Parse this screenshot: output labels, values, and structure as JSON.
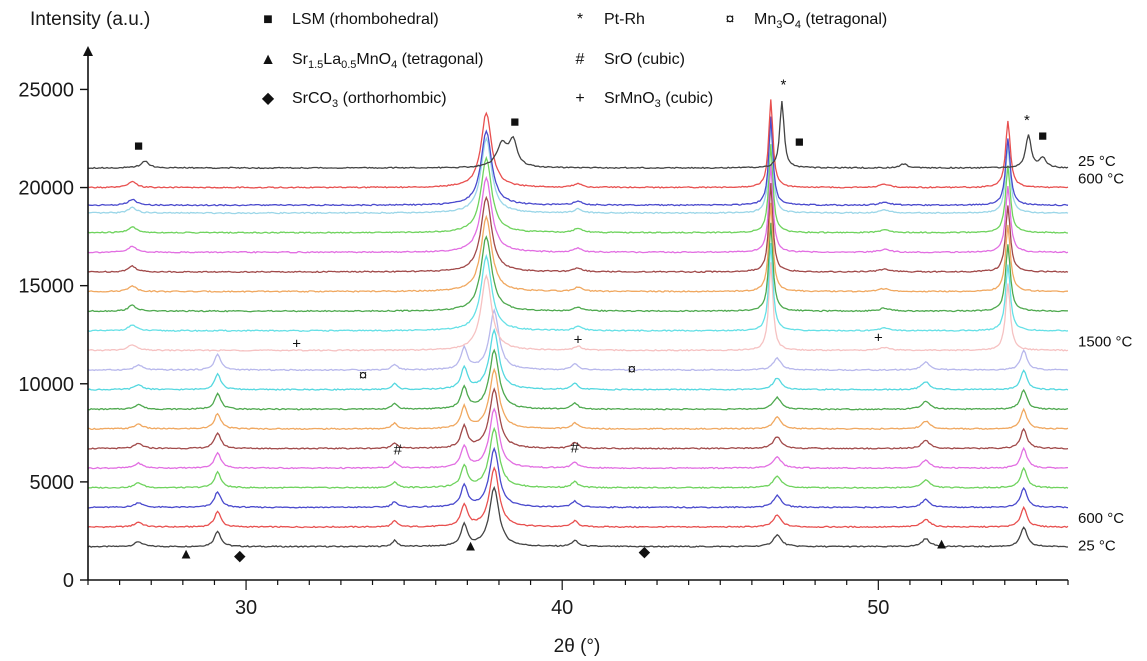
{
  "chart_data": {
    "type": "line",
    "title": "",
    "xlabel": "2θ (°)",
    "ylabel": "Intensity (a.u.)",
    "xlim": [
      25,
      56
    ],
    "ylim": [
      0,
      25000
    ],
    "xticks": [
      30,
      40,
      50
    ],
    "yticks": [
      0,
      5000,
      10000,
      15000,
      20000,
      25000
    ],
    "grid": false,
    "series_note": "waterfall of XRD patterns, heating 25→1500 °C then cooling to 25 °C",
    "series": [
      {
        "temp_label": "25 °C",
        "color": "#444444",
        "baseline": 1700,
        "phase": "low"
      },
      {
        "temp_label": "600 °C",
        "color": "#e8504f",
        "baseline": 2700,
        "phase": "low"
      },
      {
        "temp_label": "",
        "color": "#4a4acd",
        "baseline": 3700,
        "phase": "low"
      },
      {
        "temp_label": "",
        "color": "#6fd35e",
        "baseline": 4700,
        "phase": "low"
      },
      {
        "temp_label": "",
        "color": "#e26fe2",
        "baseline": 5700,
        "phase": "low"
      },
      {
        "temp_label": "",
        "color": "#a14a4a",
        "baseline": 6700,
        "phase": "low"
      },
      {
        "temp_label": "",
        "color": "#f0a860",
        "baseline": 7700,
        "phase": "low"
      },
      {
        "temp_label": "",
        "color": "#4fa94f",
        "baseline": 8700,
        "phase": "low"
      },
      {
        "temp_label": "",
        "color": "#55d8e0",
        "baseline": 9700,
        "phase": "low"
      },
      {
        "temp_label": "",
        "color": "#b8b8ec",
        "baseline": 10700,
        "phase": "low"
      },
      {
        "temp_label": "1500 °C",
        "color": "#f6c2c2",
        "baseline": 11700,
        "phase": "high"
      },
      {
        "temp_label": "",
        "color": "#66e0e6",
        "baseline": 12700,
        "phase": "high"
      },
      {
        "temp_label": "",
        "color": "#4fa94f",
        "baseline": 13700,
        "phase": "high"
      },
      {
        "temp_label": "",
        "color": "#f0a860",
        "baseline": 14700,
        "phase": "high"
      },
      {
        "temp_label": "",
        "color": "#a14a4a",
        "baseline": 15700,
        "phase": "high"
      },
      {
        "temp_label": "",
        "color": "#e26fe2",
        "baseline": 16700,
        "phase": "high"
      },
      {
        "temp_label": "",
        "color": "#6fd35e",
        "baseline": 17700,
        "phase": "high"
      },
      {
        "temp_label": "",
        "color": "#9bd6e8",
        "baseline": 18700,
        "phase": "high"
      },
      {
        "temp_label": "",
        "color": "#4a4acd",
        "baseline": 19100,
        "phase": "high"
      },
      {
        "temp_label": "600 °C",
        "color": "#e8504f",
        "baseline": 20000,
        "phase": "high"
      },
      {
        "temp_label": "25 °C",
        "color": "#444444",
        "baseline": 21000,
        "phase": "top"
      }
    ],
    "peaks": {
      "low": [
        [
          26.6,
          250,
          0.15
        ],
        [
          29.1,
          800,
          0.12
        ],
        [
          34.7,
          300,
          0.1
        ],
        [
          36.9,
          1100,
          0.12
        ],
        [
          37.85,
          3000,
          0.18
        ],
        [
          40.4,
          300,
          0.12
        ],
        [
          46.8,
          600,
          0.15
        ],
        [
          51.5,
          400,
          0.15
        ],
        [
          54.6,
          1000,
          0.12
        ]
      ],
      "high": [
        [
          26.4,
          300,
          0.15
        ],
        [
          37.6,
          3800,
          0.2
        ],
        [
          46.6,
          4500,
          0.08
        ],
        [
          54.1,
          3400,
          0.09
        ],
        [
          40.5,
          200,
          0.15
        ],
        [
          50.2,
          150,
          0.2
        ]
      ],
      "top": [
        [
          26.8,
          350,
          0.15
        ],
        [
          38.1,
          1200,
          0.2
        ],
        [
          38.45,
          1300,
          0.15
        ],
        [
          46.95,
          3400,
          0.08
        ],
        [
          50.8,
          200,
          0.15
        ],
        [
          54.75,
          1700,
          0.1
        ],
        [
          55.2,
          500,
          0.12
        ]
      ]
    },
    "legend": [
      {
        "symbol": "■",
        "color": "#1fae52",
        "label": "LSM (rhombohedral)"
      },
      {
        "symbol": "*",
        "color": "#111111",
        "label": "Pt-Rh"
      },
      {
        "symbol": "¤",
        "color": "#111111",
        "label_main": "Mn",
        "label_sub": "3",
        "label_main2": "O",
        "label_sub2": "4",
        "label_tail": " (tetragonal)"
      },
      {
        "symbol": "▲",
        "color": "#4f7fc8",
        "label_main": "Sr",
        "label_sub": "1.5",
        "label_main2": "La",
        "label_sub2": "0.5",
        "label_main3": "MnO",
        "label_sub3": "4",
        "label_tail": " (tetragonal)"
      },
      {
        "symbol": "#",
        "color": "#111111",
        "label": "SrO (cubic)"
      },
      {
        "symbol": "◆",
        "color": "#111111",
        "label_main": "SrCO",
        "label_sub": "3",
        "label_tail": " (orthorhombic)"
      },
      {
        "symbol": "+",
        "color": "#111111",
        "label_main": "SrMnO",
        "label_sub": "3",
        "label_tail": " (cubic)"
      }
    ],
    "annotations": [
      {
        "symbol": "■",
        "color": "#1fae52",
        "x": 26.6,
        "y": 21900
      },
      {
        "symbol": "■",
        "color": "#1fae52",
        "x": 38.5,
        "y": 23100
      },
      {
        "symbol": "■",
        "color": "#1fae52",
        "x": 47.5,
        "y": 22100
      },
      {
        "symbol": "■",
        "color": "#1fae52",
        "x": 55.2,
        "y": 22400
      },
      {
        "symbol": "*",
        "color": "#111111",
        "x": 47.0,
        "y": 25000
      },
      {
        "symbol": "*",
        "color": "#111111",
        "x": 54.7,
        "y": 23200
      },
      {
        "symbol": "+",
        "color": "#111111",
        "x": 31.6,
        "y": 11800
      },
      {
        "symbol": "+",
        "color": "#111111",
        "x": 40.5,
        "y": 12000
      },
      {
        "symbol": "+",
        "color": "#111111",
        "x": 50.0,
        "y": 12100
      },
      {
        "symbol": "¤",
        "color": "#111111",
        "x": 33.7,
        "y": 10200
      },
      {
        "symbol": "¤",
        "color": "#111111",
        "x": 42.2,
        "y": 10500
      },
      {
        "symbol": "#",
        "color": "#111111",
        "x": 34.8,
        "y": 6400
      },
      {
        "symbol": "#",
        "color": "#111111",
        "x": 40.4,
        "y": 6500
      },
      {
        "symbol": "▲",
        "color": "#4f7fc8",
        "x": 28.1,
        "y": 1100
      },
      {
        "symbol": "▲",
        "color": "#4f7fc8",
        "x": 37.1,
        "y": 1500
      },
      {
        "symbol": "▲",
        "color": "#4f7fc8",
        "x": 52.0,
        "y": 1600
      },
      {
        "symbol": "◆",
        "color": "#111111",
        "x": 29.8,
        "y": 1000
      },
      {
        "symbol": "◆",
        "color": "#111111",
        "x": 42.6,
        "y": 1200
      }
    ]
  }
}
